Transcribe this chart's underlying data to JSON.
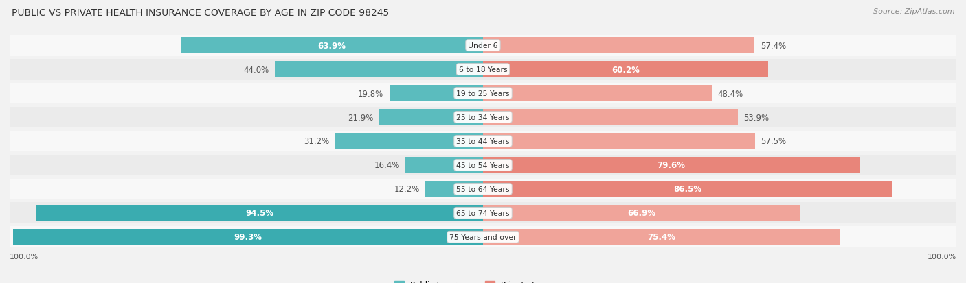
{
  "title": "PUBLIC VS PRIVATE HEALTH INSURANCE COVERAGE BY AGE IN ZIP CODE 98245",
  "source": "Source: ZipAtlas.com",
  "categories": [
    "Under 6",
    "6 to 18 Years",
    "19 to 25 Years",
    "25 to 34 Years",
    "35 to 44 Years",
    "45 to 54 Years",
    "55 to 64 Years",
    "65 to 74 Years",
    "75 Years and over"
  ],
  "public_values": [
    63.9,
    44.0,
    19.8,
    21.9,
    31.2,
    16.4,
    12.2,
    94.5,
    99.3
  ],
  "private_values": [
    57.4,
    60.2,
    48.4,
    53.9,
    57.5,
    79.6,
    86.5,
    66.9,
    75.4
  ],
  "pub_colors": [
    "#5bbcbe",
    "#5bbcbe",
    "#5bbcbe",
    "#5bbcbe",
    "#5bbcbe",
    "#5bbcbe",
    "#5bbcbe",
    "#3aacb0",
    "#3aacb0"
  ],
  "priv_colors": [
    "#f0a49a",
    "#e8857a",
    "#f0a49a",
    "#f0a49a",
    "#f0a49a",
    "#e8857a",
    "#e8857a",
    "#f0a49a",
    "#f0a49a"
  ],
  "pub_label_inside": [
    true,
    false,
    false,
    false,
    false,
    false,
    false,
    true,
    true
  ],
  "priv_label_inside": [
    false,
    true,
    false,
    false,
    false,
    true,
    true,
    true,
    true
  ],
  "background_color": "#f2f2f2",
  "row_bg_odd": "#f8f8f8",
  "row_bg_even": "#ebebeb",
  "max_value": 100.0,
  "legend_public": "Public Insurance",
  "legend_private": "Private Insurance",
  "public_color": "#5bbcbe",
  "private_color": "#e8857a"
}
